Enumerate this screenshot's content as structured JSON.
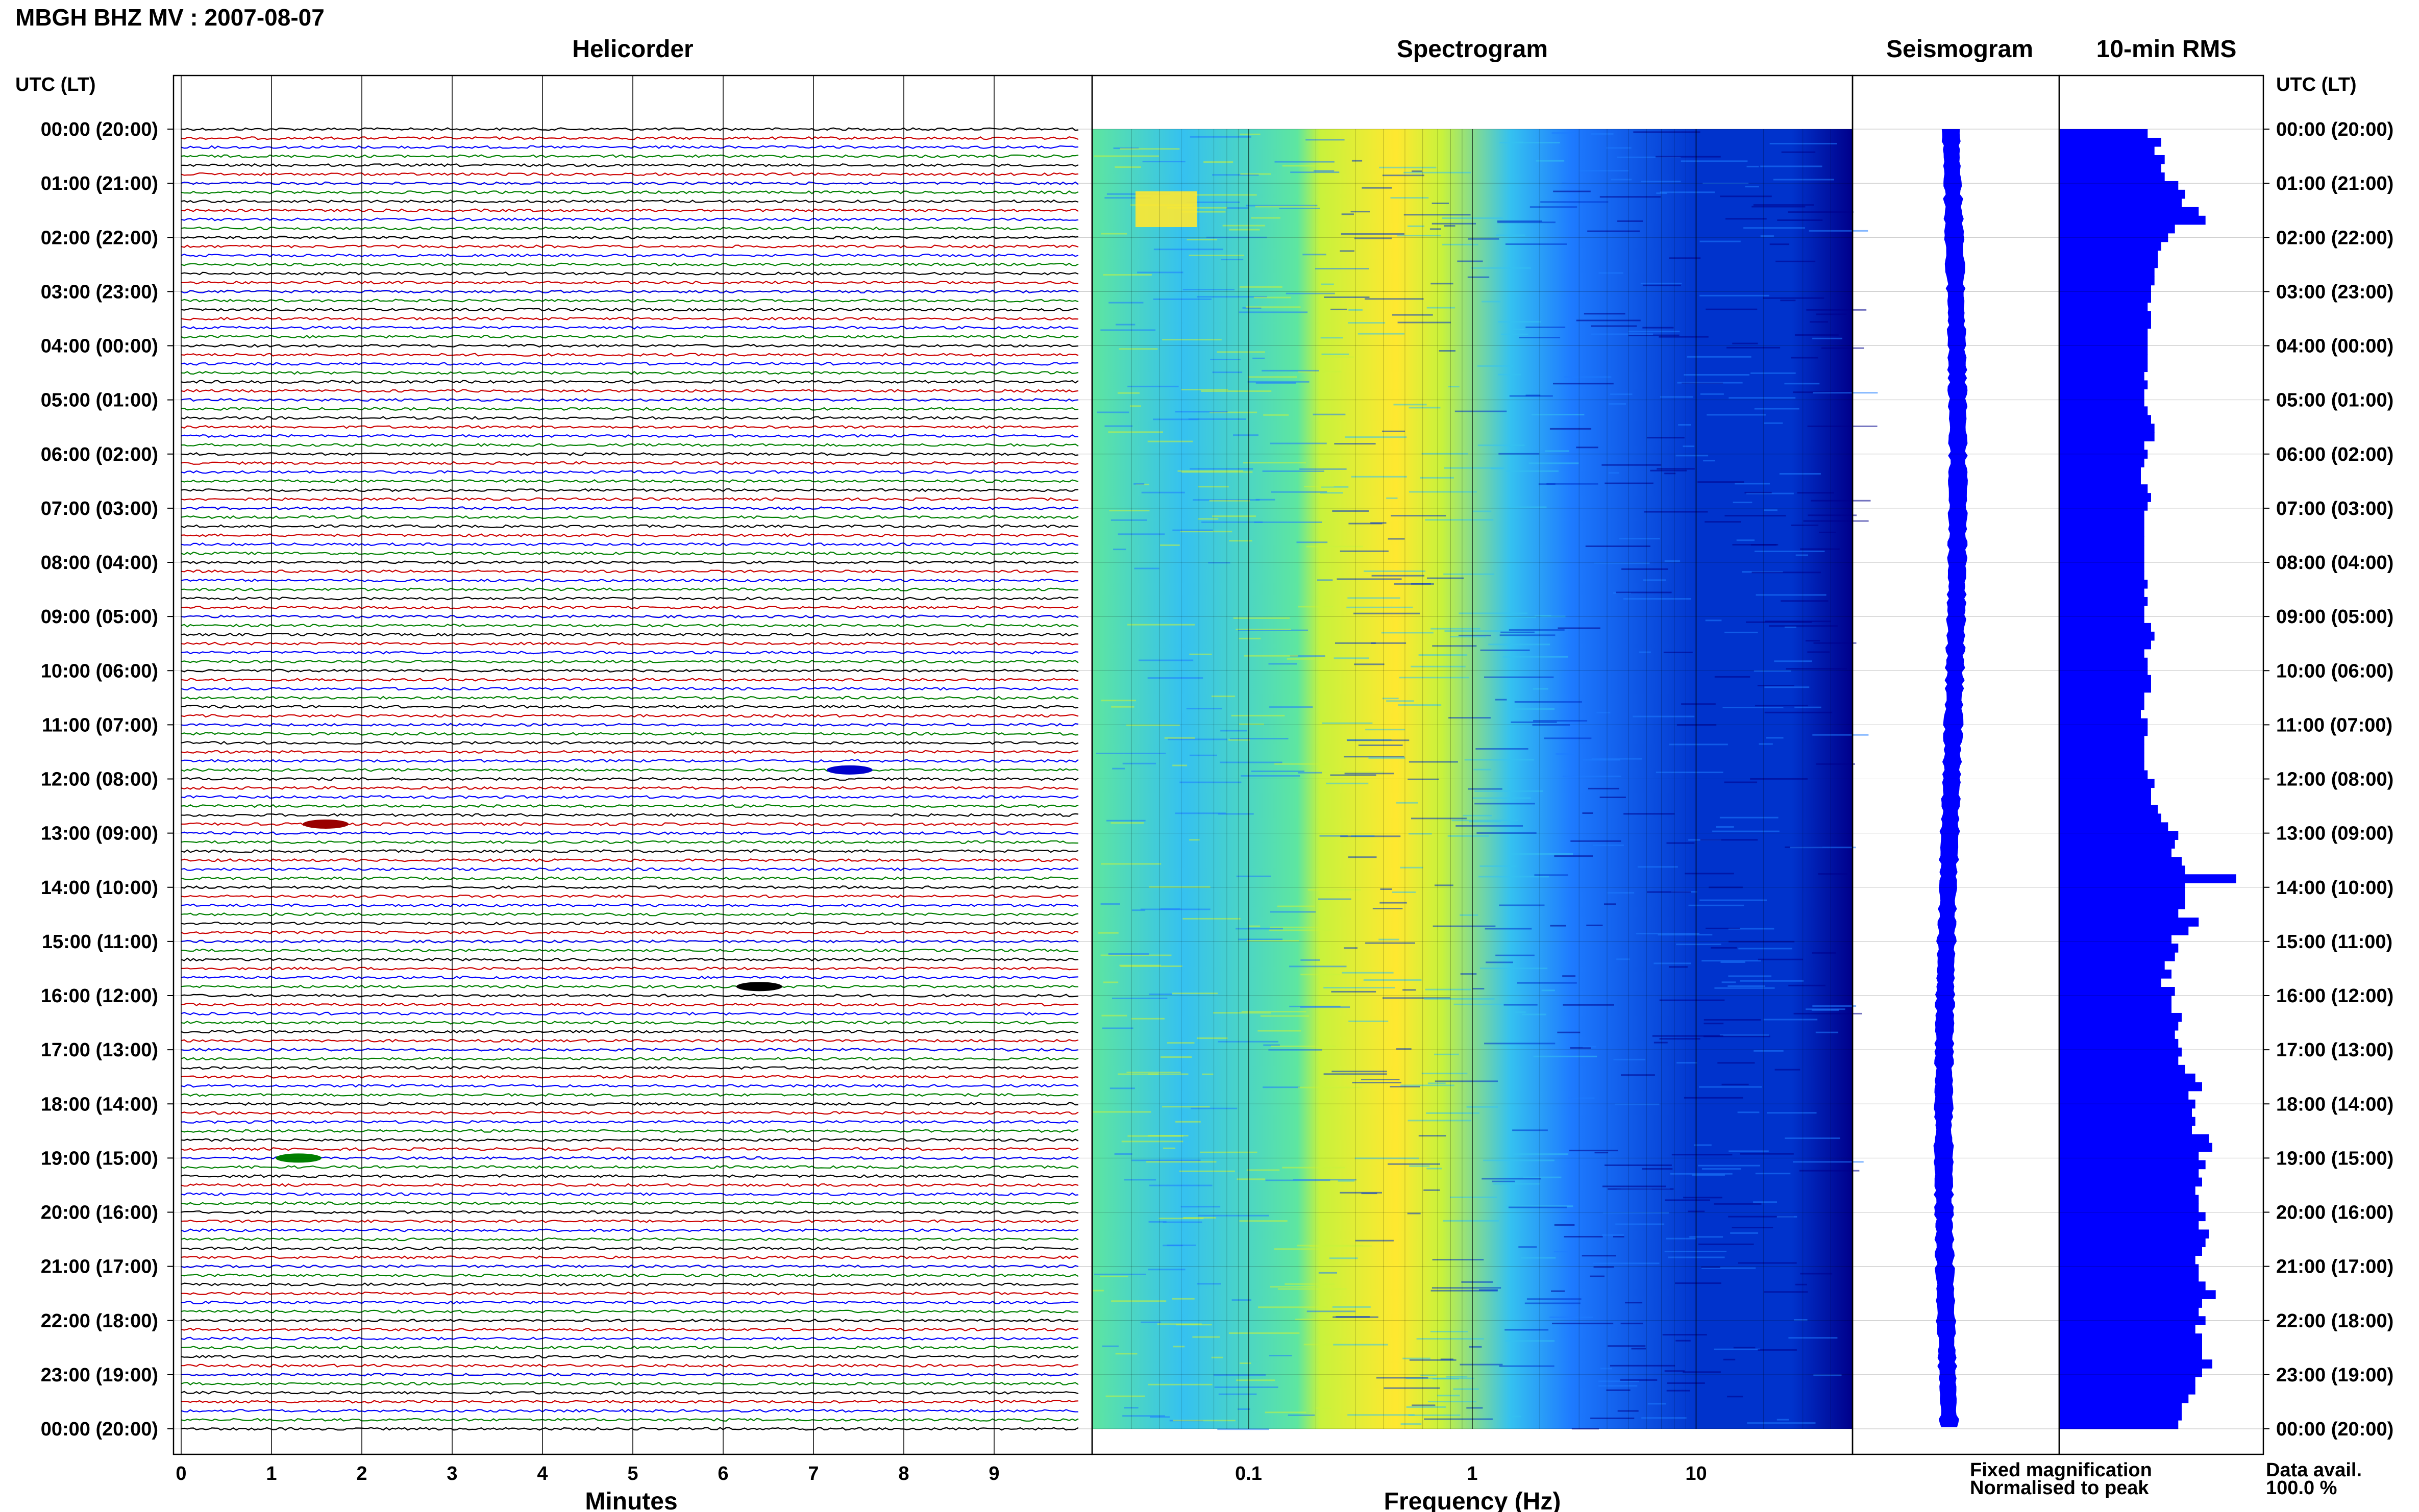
{
  "header": {
    "title": "MBGH BHZ MV : 2007-08-07"
  },
  "panels": {
    "helicorder": "Helicorder",
    "spectrogram": "Spectrogram",
    "seismogram": "Seismogram",
    "rms": "10-min RMS"
  },
  "axes": {
    "time_label_left": "UTC (LT)",
    "time_label_right": "UTC (LT)",
    "time_ticks": [
      "00:00 (20:00)",
      "01:00 (21:00)",
      "02:00 (22:00)",
      "03:00 (23:00)",
      "04:00 (00:00)",
      "05:00 (01:00)",
      "06:00 (02:00)",
      "07:00 (03:00)",
      "08:00 (04:00)",
      "09:00 (05:00)",
      "10:00 (06:00)",
      "11:00 (07:00)",
      "12:00 (08:00)",
      "13:00 (09:00)",
      "14:00 (10:00)",
      "15:00 (11:00)",
      "16:00 (12:00)",
      "17:00 (13:00)",
      "18:00 (14:00)",
      "19:00 (15:00)",
      "20:00 (16:00)",
      "21:00 (17:00)",
      "22:00 (18:00)",
      "23:00 (19:00)",
      "00:00 (20:00)"
    ],
    "minutes_label": "Minutes",
    "minutes_ticks": [
      "0",
      "1",
      "2",
      "3",
      "4",
      "5",
      "6",
      "7",
      "8",
      "9"
    ],
    "frequency_label": "Frequency (Hz)",
    "frequency_ticks": [
      "0.1",
      "1",
      "10"
    ]
  },
  "legend": {
    "fixed": "Fixed magnification",
    "normalised": "Normalised to peak",
    "fixed_color": "#0000ff",
    "normalised_color": "#ff0000"
  },
  "availability": {
    "label": "Data avail.",
    "value": "100.0 %"
  },
  "chart_data": {
    "type": "heatmap",
    "helicorder": {
      "x_range_minutes": [
        0,
        10
      ],
      "rows_per_hour": 6,
      "hours": 24,
      "trace_colors": [
        "#000000",
        "#cc0000",
        "#0000ff",
        "#008000"
      ],
      "events": [
        {
          "hour": 12,
          "row": 5,
          "minute": 1.6,
          "color": "#990000"
        },
        {
          "hour": 11,
          "row": 5,
          "minute": 7.4,
          "color": "#0000cc"
        },
        {
          "hour": 15,
          "row": 5,
          "minute": 6.4,
          "color": "#000000"
        },
        {
          "hour": 19,
          "row": 0,
          "minute": 1.3,
          "color": "#008000"
        }
      ]
    },
    "spectrogram": {
      "x_scale": "log",
      "x_range_hz": [
        0.02,
        50
      ],
      "colormap": [
        "#00008b",
        "#0033cc",
        "#1e7bff",
        "#35c1f0",
        "#5ee6a0",
        "#c8f23c",
        "#ffe830"
      ]
    },
    "seismogram": {
      "color": "#0000ff"
    },
    "rms_10min": {
      "color": "#0000ff",
      "values": [
        26,
        30,
        28,
        31,
        30,
        31,
        35,
        37,
        36,
        41,
        43,
        34,
        32,
        30,
        29,
        29,
        28,
        28,
        27,
        27,
        26,
        27,
        27,
        26,
        26,
        26,
        26,
        26,
        25,
        26,
        25,
        25,
        26,
        27,
        28,
        28,
        25,
        26,
        25,
        24,
        24,
        26,
        27,
        26,
        25,
        25,
        25,
        25,
        25,
        25,
        25,
        25,
        26,
        25,
        26,
        25,
        25,
        27,
        28,
        27,
        25,
        26,
        26,
        27,
        27,
        25,
        25,
        24,
        26,
        26,
        25,
        25,
        25,
        25,
        26,
        28,
        27,
        27,
        29,
        30,
        32,
        35,
        34,
        33,
        36,
        37,
        52,
        37,
        37,
        37,
        35,
        41,
        38,
        33,
        35,
        34,
        31,
        33,
        30,
        34,
        33,
        33,
        36,
        35,
        34,
        35,
        36,
        35,
        37,
        40,
        42,
        38,
        40,
        39,
        40,
        39,
        44,
        45,
        41,
        43,
        41,
        42,
        40,
        41,
        41,
        43,
        41,
        44,
        43,
        42,
        40,
        41,
        41,
        43,
        46,
        42,
        41,
        43,
        40,
        42,
        42,
        42,
        45,
        42,
        40,
        40,
        38,
        36,
        36,
        35
      ]
    }
  }
}
